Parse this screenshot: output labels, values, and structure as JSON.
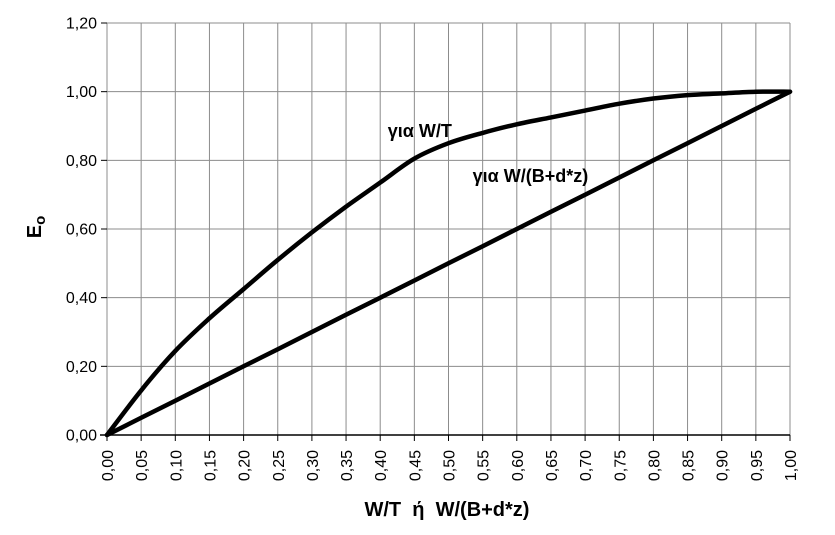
{
  "chart_data": {
    "type": "line",
    "title": "",
    "xlabel": "W/T  ή  W/(B+d*z)",
    "ylabel": "Eo",
    "ylabel_base": "E",
    "ylabel_sub": "o",
    "x": [
      0.0,
      0.05,
      0.1,
      0.15,
      0.2,
      0.25,
      0.3,
      0.35,
      0.4,
      0.45,
      0.5,
      0.55,
      0.6,
      0.65,
      0.7,
      0.75,
      0.8,
      0.85,
      0.9,
      0.95,
      1.0
    ],
    "series": [
      {
        "name": "για W/T",
        "values": [
          0,
          0.13,
          0.245,
          0.34,
          0.425,
          0.51,
          0.59,
          0.665,
          0.735,
          0.805,
          0.85,
          0.88,
          0.905,
          0.925,
          0.945,
          0.965,
          0.98,
          0.99,
          0.995,
          1.0,
          1.0
        ]
      },
      {
        "name": "για W/(B+d*z)",
        "values": [
          0,
          0.05,
          0.1,
          0.15,
          0.2,
          0.25,
          0.3,
          0.35,
          0.4,
          0.45,
          0.5,
          0.55,
          0.6,
          0.65,
          0.7,
          0.75,
          0.8,
          0.85,
          0.9,
          0.95,
          1.0
        ]
      }
    ],
    "xlim": [
      0,
      1.0
    ],
    "ylim": [
      0,
      1.2
    ],
    "x_tick_step": 0.05,
    "y_tick_step": 0.2,
    "x_tick_labels": [
      "0,00",
      "0,05",
      "0,10",
      "0,15",
      "0,20",
      "0,25",
      "0,30",
      "0,35",
      "0,40",
      "0,45",
      "0,50",
      "0,55",
      "0,60",
      "0,65",
      "0,70",
      "0,75",
      "0,80",
      "0,85",
      "0,90",
      "0,95",
      "1,00"
    ],
    "y_tick_labels": [
      "0,00",
      "0,20",
      "0,40",
      "0,60",
      "0,80",
      "1,00",
      "1,20"
    ],
    "grid": true,
    "legend_position": "none",
    "annotations": [
      {
        "text": "για W/T",
        "x": 0.458,
        "y": 0.885
      },
      {
        "text": "για W/(B+d*z)",
        "x": 0.62,
        "y": 0.755
      }
    ],
    "colors": {
      "curve": "#000000",
      "grid": "#8c8c8c",
      "axis": "#000000",
      "text": "#000000",
      "background": "#ffffff"
    }
  }
}
